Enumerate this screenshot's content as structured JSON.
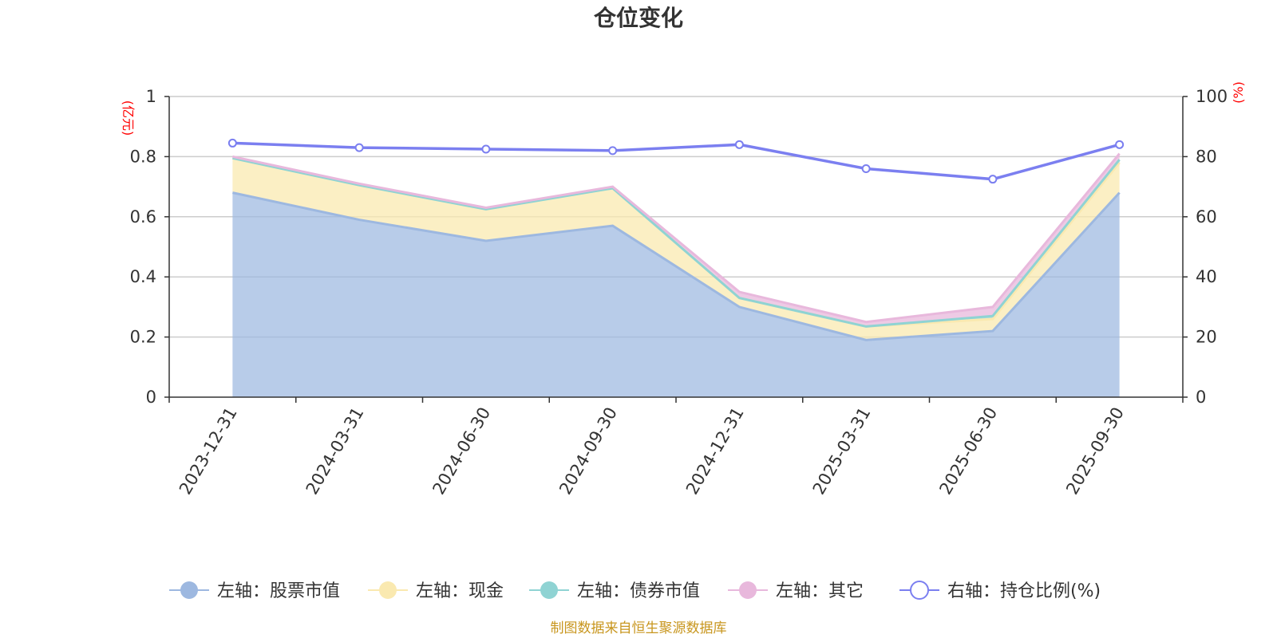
{
  "chart_data": {
    "type": "area",
    "title": "仓位变化",
    "categories": [
      "2023-12-31",
      "2024-03-31",
      "2024-06-30",
      "2024-09-30",
      "2024-12-31",
      "2025-03-31",
      "2025-06-30",
      "2025-09-30"
    ],
    "left_axis": {
      "unit": "(亿元)",
      "ylim": [
        0,
        1
      ],
      "ticks": [
        "0",
        "0.2",
        "0.4",
        "0.6",
        "0.8",
        "1"
      ]
    },
    "right_axis": {
      "unit": "(%)",
      "ylim": [
        0,
        100
      ],
      "ticks": [
        "0",
        "20",
        "40",
        "60",
        "80",
        "100"
      ]
    },
    "series": [
      {
        "name": "左轴：股票市值",
        "axis": "left",
        "stacked": true,
        "color": "#9db8e0",
        "values": [
          0.68,
          0.59,
          0.52,
          0.57,
          0.3,
          0.19,
          0.22,
          0.68
        ]
      },
      {
        "name": "左轴：现金",
        "axis": "left",
        "stacked": true,
        "color": "#fae9b0",
        "values": [
          0.115,
          0.115,
          0.105,
          0.125,
          0.03,
          0.045,
          0.04,
          0.1
        ]
      },
      {
        "name": "左轴：债券市值",
        "axis": "left",
        "stacked": true,
        "color": "#8fd3d3",
        "values": [
          0.0,
          0.0,
          0.0,
          0.0,
          0.0,
          0.0,
          0.01,
          0.01
        ]
      },
      {
        "name": "左轴：其它",
        "axis": "left",
        "stacked": true,
        "color": "#e8b8dc",
        "values": [
          0.005,
          0.005,
          0.005,
          0.005,
          0.02,
          0.015,
          0.03,
          0.02
        ]
      },
      {
        "name": "右轴：持仓比例(%)",
        "axis": "right",
        "type": "line",
        "color": "#7b7ff0",
        "values": [
          84.5,
          83.0,
          82.5,
          82.0,
          84.0,
          76.0,
          72.5,
          84.0
        ]
      }
    ],
    "legend_position": "bottom",
    "grid": true
  },
  "footer": {
    "source_note": "制图数据来自恒生聚源数据库"
  }
}
